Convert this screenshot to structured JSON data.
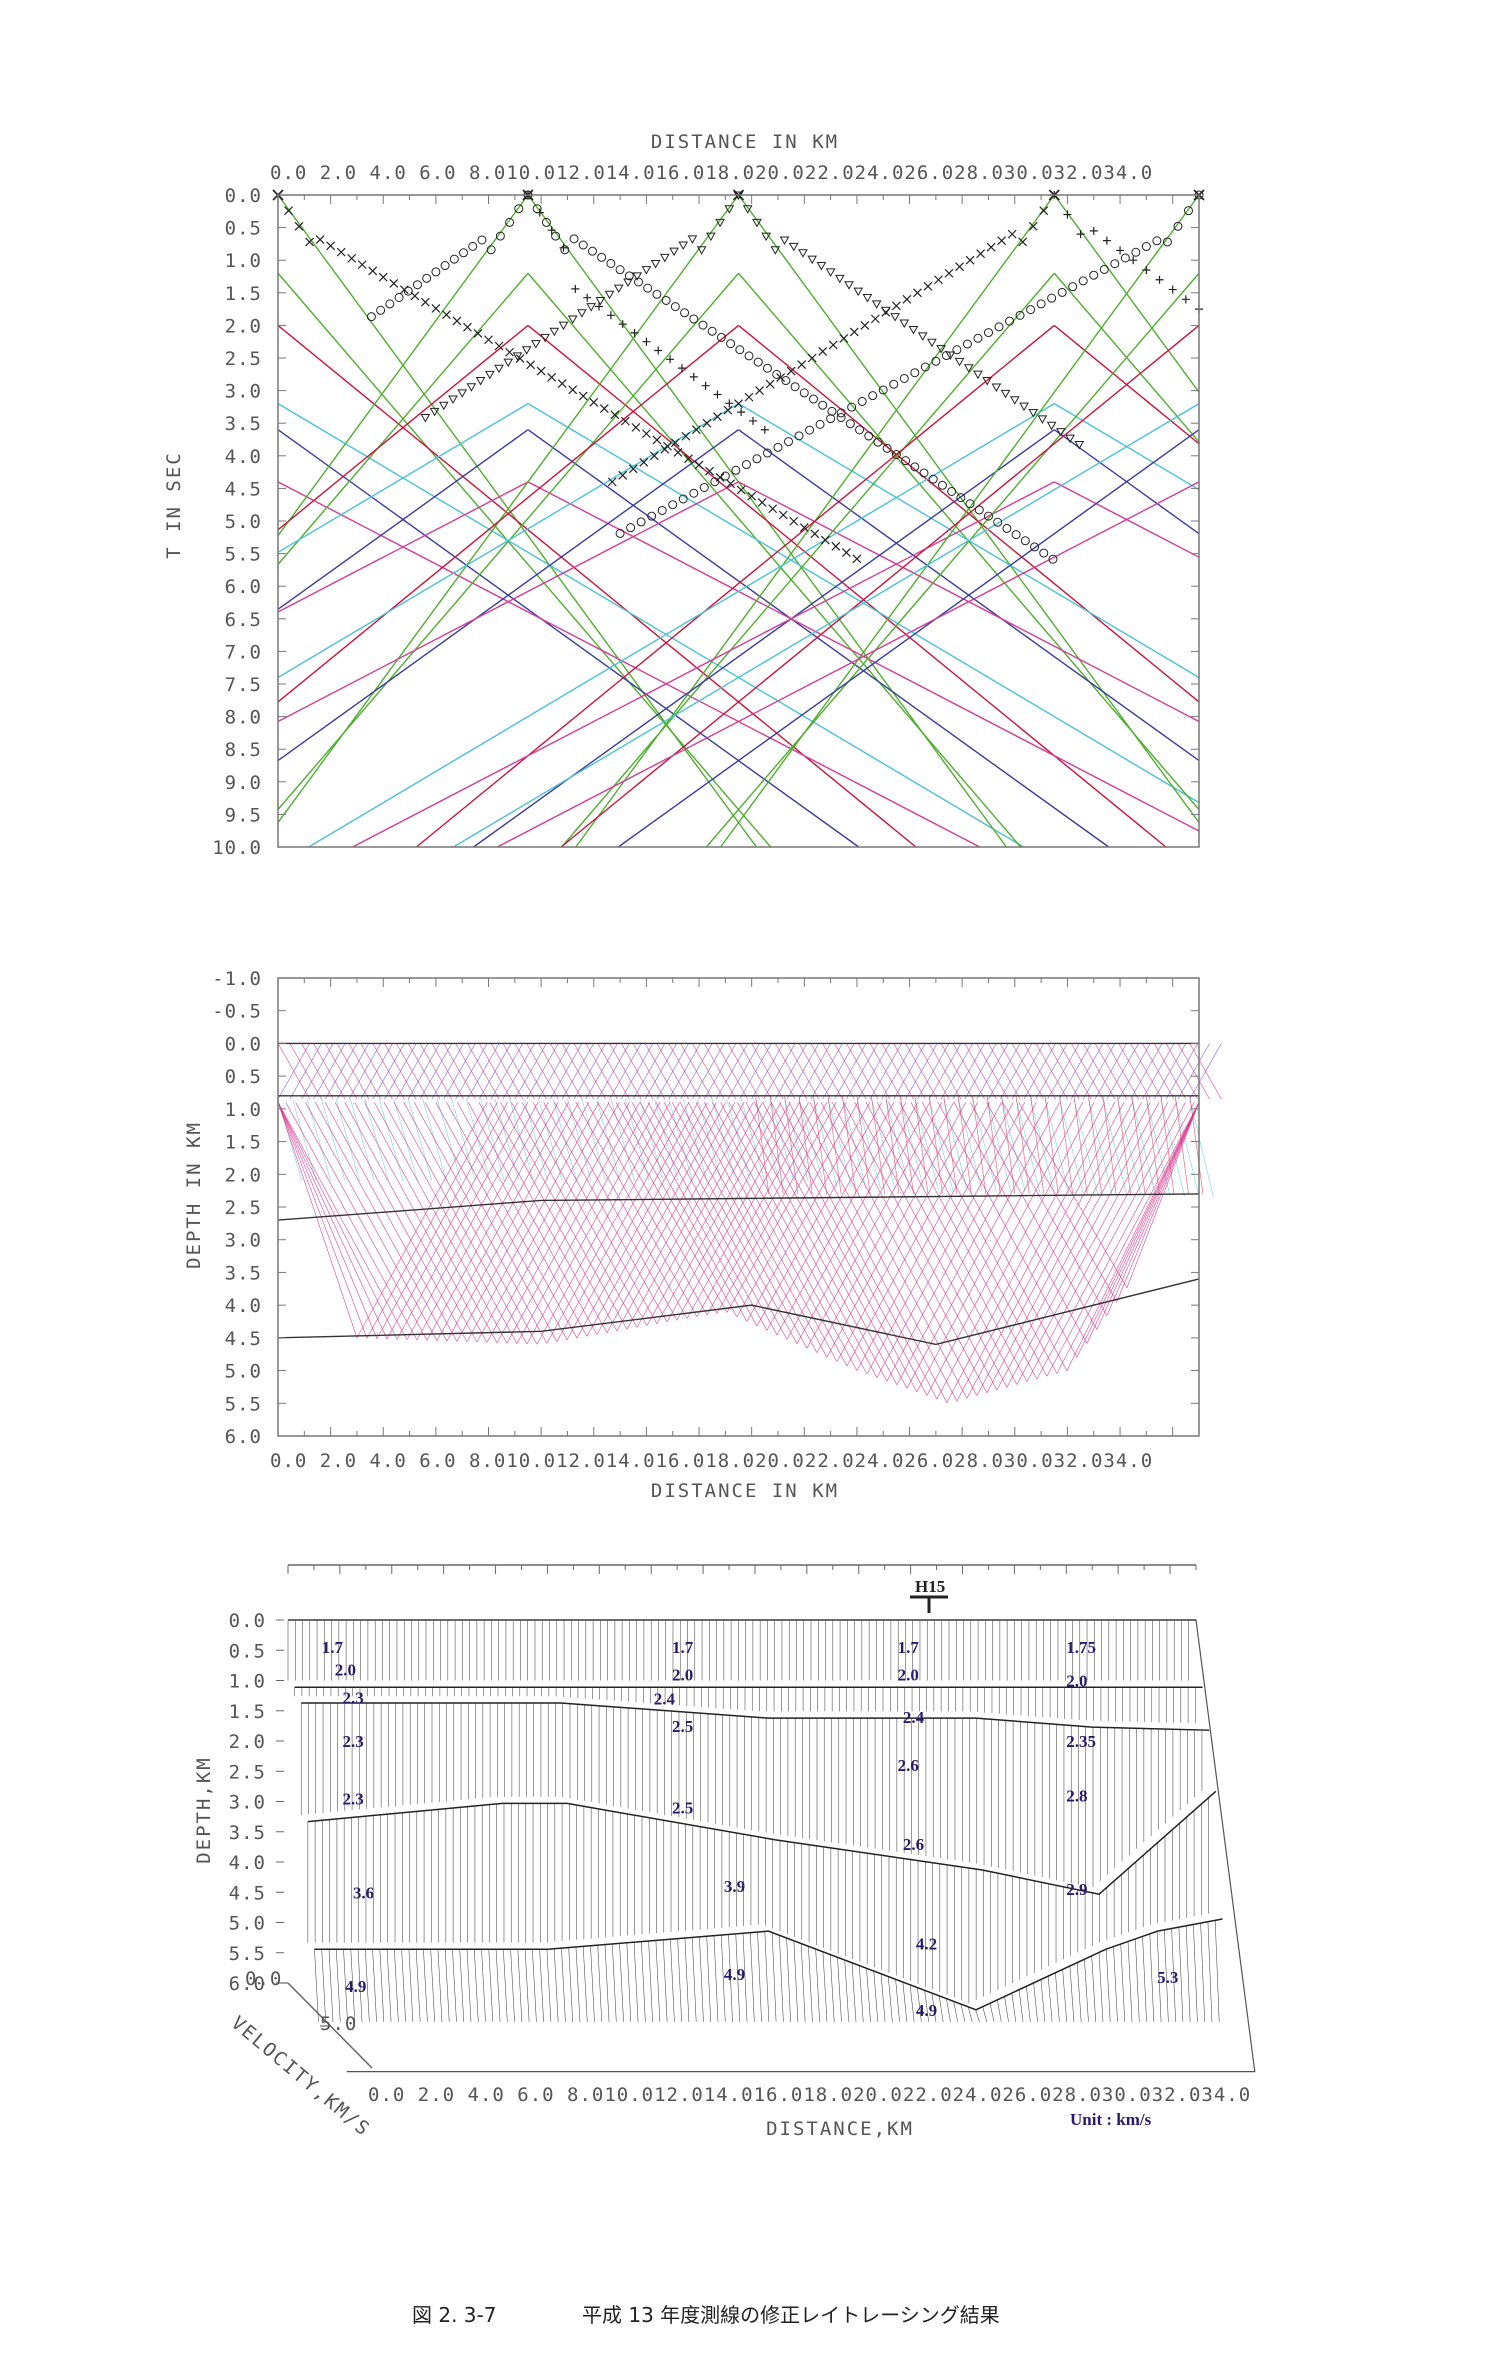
{
  "caption": {
    "figure_no": "図 2. 3-7",
    "title": "平成 13 年度測線の修正レイトレーシング結果"
  },
  "chart_data": [
    {
      "type": "scatter",
      "panel": "travel-time",
      "xlabel": "DISTANCE IN KM",
      "ylabel": "T IN SEC",
      "xlim": [
        0,
        35
      ],
      "ylim": [
        10,
        0
      ],
      "x_ticks": [
        "0.0",
        "2.0",
        "4.0",
        "6.0",
        "8.0",
        "10.0",
        "12.0",
        "14.0",
        "16.0",
        "18.0",
        "20.0",
        "22.0",
        "24.0",
        "26.0",
        "28.0",
        "30.0",
        "32.0",
        "34.0"
      ],
      "x_tick_text": "0.0 2.0 4.0 6.0 8.010.012.014.016.018.020.022.024.026.028.030.032.034.0",
      "y_ticks": [
        "0.0",
        "0.5",
        "1.0",
        "1.5",
        "2.0",
        "2.5",
        "3.0",
        "3.5",
        "4.0",
        "4.5",
        "5.0",
        "5.5",
        "6.0",
        "6.5",
        "7.0",
        "7.5",
        "8.0",
        "8.5",
        "9.0",
        "9.5",
        "10.0"
      ],
      "shots_km": [
        0,
        9.5,
        17.5,
        29.5,
        35
      ],
      "line_colors": [
        "#4fae2e",
        "#c8143c",
        "#3b3b9e",
        "#48c2d6",
        "#d23c96"
      ],
      "marker_color": "#222222"
    },
    {
      "type": "line",
      "panel": "ray-paths",
      "xlabel": "DISTANCE IN KM",
      "ylabel": "DEPTH IN KM",
      "xlim": [
        0,
        35
      ],
      "ylim": [
        6,
        -1
      ],
      "x_tick_text": "0.0 2.0 4.0 6.0 8.010.012.014.016.018.020.022.024.026.028.030.032.034.0",
      "y_ticks": [
        "-1.0",
        "-0.5",
        "0.0",
        "0.5",
        "1.0",
        "1.5",
        "2.0",
        "2.5",
        "3.0",
        "3.5",
        "4.0",
        "4.5",
        "5.0",
        "5.5",
        "6.0"
      ],
      "ray_colors": [
        "#d8338c",
        "#7b4fc8",
        "#e03050",
        "#54c8d8"
      ],
      "interfaces": [
        {
          "x": [
            0,
            35
          ],
          "y": [
            0.0,
            0.0
          ]
        },
        {
          "x": [
            0,
            35
          ],
          "y": [
            0.8,
            0.8
          ]
        },
        {
          "x": [
            0,
            10,
            35
          ],
          "y": [
            2.7,
            2.4,
            2.3
          ]
        },
        {
          "x": [
            0,
            10,
            18,
            25,
            30,
            35
          ],
          "y": [
            4.5,
            4.4,
            4.0,
            4.6,
            4.1,
            3.6
          ]
        }
      ],
      "refractor_bottom": {
        "x": [
          3,
          10,
          17,
          22,
          25.5,
          30,
          32.5
        ],
        "y": [
          4.5,
          4.6,
          4.1,
          5.0,
          5.5,
          5.0,
          3.6
        ]
      }
    },
    {
      "type": "line",
      "panel": "velocity-model",
      "xlabel": "DISTANCE,KM",
      "ylabel": "DEPTH,KM",
      "zlabel": "VELOCITY,KM/S",
      "z_ticks": [
        "0.0",
        "5.0"
      ],
      "x_tick_text": "0.0 2.0 4.0 6.0 8.010.012.014.016.018.020.022.024.026.028.030.032.034.0",
      "y_ticks": [
        "0.0",
        "0.5",
        "1.0",
        "1.5",
        "2.0",
        "2.5",
        "3.0",
        "3.5",
        "4.0",
        "4.5",
        "5.0",
        "5.5",
        "6.0"
      ],
      "station_marker": "H15",
      "station_km": 22.5,
      "unit_note": "Unit : km/s",
      "layer_boundaries": [
        {
          "x": [
            0,
            10,
            18,
            26,
            30.5,
            35
          ],
          "y": [
            0.0,
            0.0,
            0.0,
            0.0,
            0.0,
            0.0
          ]
        },
        {
          "x": [
            0,
            10,
            18,
            26,
            30.5,
            35
          ],
          "y": [
            1.0,
            1.0,
            1.0,
            1.0,
            1.0,
            1.0
          ]
        },
        {
          "x": [
            0,
            10,
            18,
            26,
            30.5,
            35
          ],
          "y": [
            1.15,
            1.15,
            1.4,
            1.4,
            1.55,
            1.6
          ]
        },
        {
          "x": [
            0,
            7.5,
            10,
            18,
            26,
            30.5,
            35
          ],
          "y": [
            3.0,
            2.7,
            2.7,
            3.3,
            3.8,
            4.2,
            2.5
          ]
        },
        {
          "x": [
            0,
            9,
            17.5,
            25.5,
            30.5,
            32.5,
            35
          ],
          "y": [
            5.0,
            5.0,
            4.7,
            6.0,
            5.0,
            4.7,
            4.5
          ]
        }
      ],
      "velocity_labels": [
        {
          "x": 1.3,
          "y": 0.45,
          "v": "1.7"
        },
        {
          "x": 1.8,
          "y": 0.82,
          "v": "2.0"
        },
        {
          "x": 2.1,
          "y": 1.28,
          "v": "2.3"
        },
        {
          "x": 2.1,
          "y": 2.0,
          "v": "2.3"
        },
        {
          "x": 2.1,
          "y": 2.95,
          "v": "2.3"
        },
        {
          "x": 2.5,
          "y": 4.5,
          "v": "3.6"
        },
        {
          "x": 2.2,
          "y": 6.05,
          "v": "4.9"
        },
        {
          "x": 14.8,
          "y": 0.45,
          "v": "1.7"
        },
        {
          "x": 14.8,
          "y": 0.9,
          "v": "2.0"
        },
        {
          "x": 14.1,
          "y": 1.3,
          "v": "2.4"
        },
        {
          "x": 14.8,
          "y": 1.75,
          "v": "2.5"
        },
        {
          "x": 14.8,
          "y": 3.1,
          "v": "2.5"
        },
        {
          "x": 16.8,
          "y": 4.4,
          "v": "3.9"
        },
        {
          "x": 16.8,
          "y": 5.85,
          "v": "4.9"
        },
        {
          "x": 23.5,
          "y": 0.45,
          "v": "1.7"
        },
        {
          "x": 23.5,
          "y": 0.9,
          "v": "2.0"
        },
        {
          "x": 23.7,
          "y": 1.6,
          "v": "2.4"
        },
        {
          "x": 23.5,
          "y": 2.4,
          "v": "2.6"
        },
        {
          "x": 23.7,
          "y": 3.7,
          "v": "2.6"
        },
        {
          "x": 24.2,
          "y": 5.35,
          "v": "4.2"
        },
        {
          "x": 24.2,
          "y": 6.45,
          "v": "4.9"
        },
        {
          "x": 30.0,
          "y": 0.45,
          "v": "1.75"
        },
        {
          "x": 30.0,
          "y": 1.0,
          "v": "2.0"
        },
        {
          "x": 30.0,
          "y": 2.0,
          "v": "2.35"
        },
        {
          "x": 30.0,
          "y": 2.9,
          "v": "2.8"
        },
        {
          "x": 30.0,
          "y": 4.45,
          "v": "2.9"
        },
        {
          "x": 33.5,
          "y": 5.9,
          "v": "5.3"
        }
      ]
    }
  ]
}
